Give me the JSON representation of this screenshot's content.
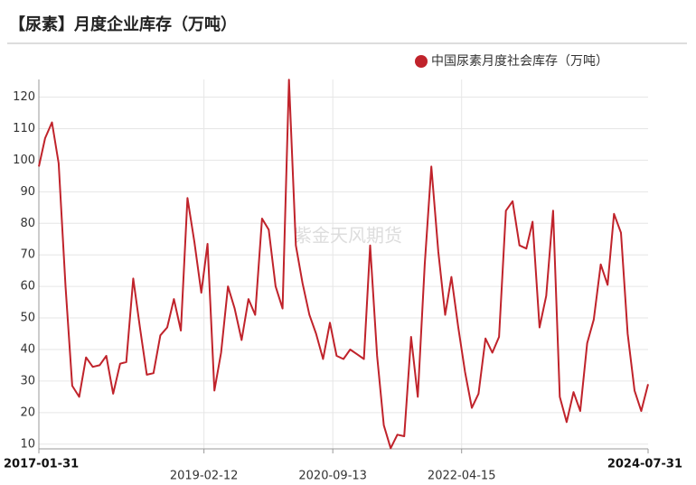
{
  "chart_data": {
    "type": "line",
    "title": "【尿素】月度企业库存（万吨）",
    "watermark": "紫金天风期货",
    "legend_position": "top-right",
    "grid": true,
    "x": [
      "2017-01-31",
      "2017-02-28",
      "2017-03-31",
      "2017-04-30",
      "2017-05-31",
      "2017-06-30",
      "2017-07-31",
      "2017-08-31",
      "2017-09-30",
      "2017-10-31",
      "2017-11-30",
      "2017-12-31",
      "2018-01-31",
      "2018-02-28",
      "2018-03-31",
      "2018-04-30",
      "2018-05-31",
      "2018-06-30",
      "2018-07-31",
      "2018-08-31",
      "2018-09-30",
      "2018-10-31",
      "2018-11-30",
      "2018-12-31",
      "2019-01-31",
      "2019-02-28",
      "2019-03-31",
      "2019-04-30",
      "2019-05-31",
      "2019-06-30",
      "2019-07-31",
      "2019-08-31",
      "2019-09-30",
      "2019-10-31",
      "2019-11-30",
      "2019-12-31",
      "2020-01-31",
      "2020-02-29",
      "2020-03-31",
      "2020-04-30",
      "2020-05-31",
      "2020-06-30",
      "2020-07-31",
      "2020-08-31",
      "2020-09-30",
      "2020-10-31",
      "2020-11-30",
      "2020-12-31",
      "2021-01-31",
      "2021-02-28",
      "2021-03-31",
      "2021-04-30",
      "2021-05-31",
      "2021-06-30",
      "2021-07-31",
      "2021-08-31",
      "2021-09-30",
      "2021-10-31",
      "2021-11-30",
      "2021-12-31",
      "2022-01-31",
      "2022-02-28",
      "2022-03-31",
      "2022-04-30",
      "2022-05-31",
      "2022-06-30",
      "2022-07-31",
      "2022-08-31",
      "2022-09-30",
      "2022-10-31",
      "2022-11-30",
      "2022-12-31",
      "2023-01-31",
      "2023-02-28",
      "2023-03-31",
      "2023-04-30",
      "2023-05-31",
      "2023-06-30",
      "2023-07-31",
      "2023-08-31",
      "2023-09-30",
      "2023-10-31",
      "2023-11-30",
      "2023-12-31",
      "2024-01-31",
      "2024-02-29",
      "2024-03-31",
      "2024-04-30",
      "2024-05-31",
      "2024-06-30",
      "2024-07-31"
    ],
    "series": [
      {
        "name": "中国尿素月度社会库存（万吨）",
        "color": "#c0232b",
        "values": [
          98,
          107,
          112,
          99,
          60,
          28.5,
          25,
          37.5,
          34.5,
          35,
          38,
          26,
          35.5,
          36,
          62.5,
          47,
          32,
          32.5,
          44.5,
          47,
          56,
          46,
          88,
          74,
          58,
          73.5,
          27,
          39,
          60,
          53,
          43,
          56,
          51,
          81.5,
          78,
          60,
          53,
          125.5,
          73,
          61,
          51,
          45,
          37,
          48.5,
          38,
          37,
          40,
          38.5,
          37,
          73,
          38,
          16,
          8.7,
          13,
          12.5,
          44,
          25,
          67,
          98,
          71,
          51,
          63,
          47,
          33,
          21.5,
          26,
          43.5,
          39,
          44,
          84,
          87,
          73,
          72,
          80.5,
          47,
          57,
          84,
          25,
          17,
          26.5,
          20.5,
          42,
          49.5,
          67,
          60.5,
          83,
          77,
          45,
          27,
          20.5,
          29
        ]
      }
    ],
    "xlim": [
      "2017-01-31",
      "2024-07-31"
    ],
    "xticks": [
      "2017-01-31",
      "2019-02-12",
      "2020-09-13",
      "2022-04-15",
      "2024-07-31"
    ],
    "ylim": [
      8.5,
      125.6
    ],
    "yticks": [
      10,
      20,
      30,
      40,
      50,
      60,
      70,
      80,
      90,
      100,
      110,
      120
    ]
  }
}
